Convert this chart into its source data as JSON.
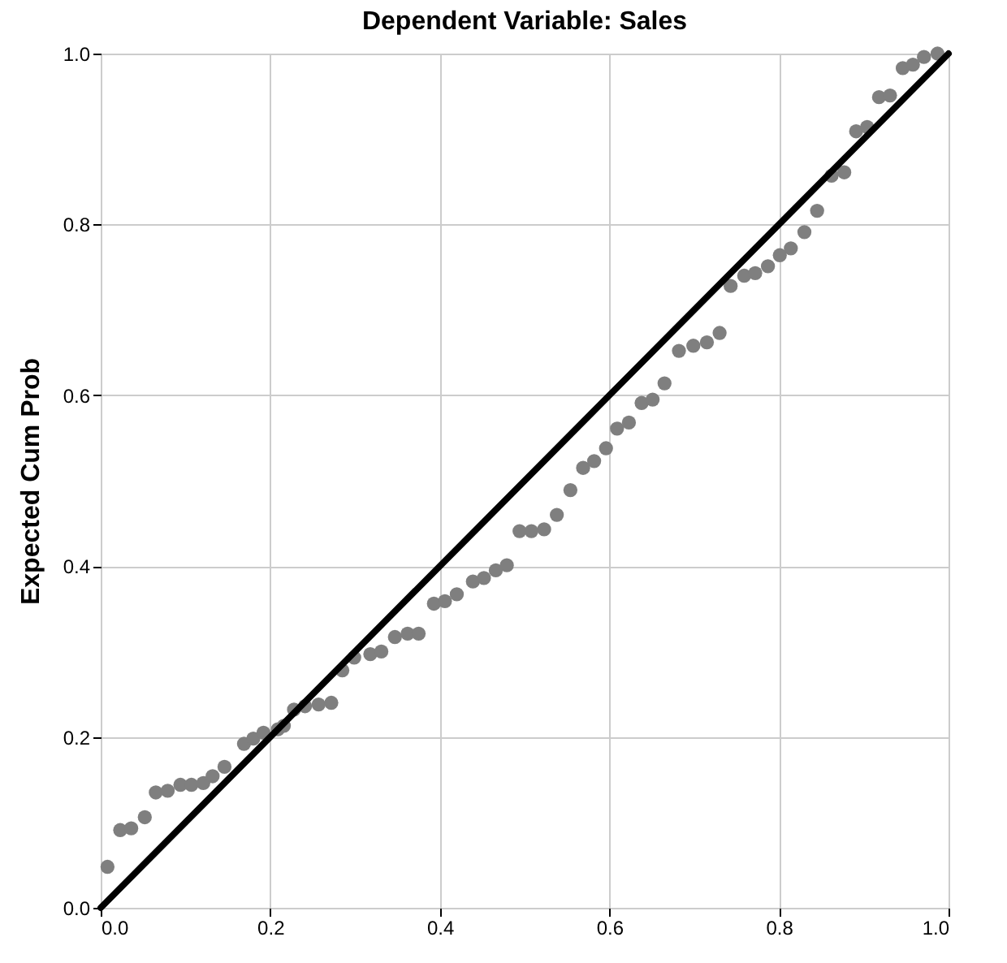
{
  "chart_data": {
    "type": "scatter",
    "title": "Dependent Variable: Sales",
    "ylabel": "Expected Cum Prob",
    "xlim": [
      0,
      1
    ],
    "ylim": [
      0,
      1
    ],
    "xticks": [
      {
        "value": 0,
        "label": "0.0"
      },
      {
        "value": 0.2,
        "label": "0.2"
      },
      {
        "value": 0.4,
        "label": "0.4"
      },
      {
        "value": 0.6,
        "label": "0.6"
      },
      {
        "value": 0.8,
        "label": "0.8"
      },
      {
        "value": 1,
        "label": "1.0"
      }
    ],
    "yticks": [
      {
        "value": 0,
        "label": "0.0"
      },
      {
        "value": 0.2,
        "label": "0.2"
      },
      {
        "value": 0.4,
        "label": "0.4"
      },
      {
        "value": 0.6,
        "label": "0.6"
      },
      {
        "value": 0.8,
        "label": "0.8"
      },
      {
        "value": 1,
        "label": "1.0"
      }
    ],
    "grid": true,
    "series": [
      {
        "type": "scatter",
        "marker": "circle",
        "color": "#7f7f7f",
        "x": [
          0.008,
          0.023,
          0.036,
          0.052,
          0.065,
          0.079,
          0.094,
          0.107,
          0.121,
          0.132,
          0.146,
          0.169,
          0.18,
          0.192,
          0.209,
          0.216,
          0.228,
          0.241,
          0.257,
          0.272,
          0.285,
          0.299,
          0.318,
          0.331,
          0.347,
          0.362,
          0.375,
          0.393,
          0.406,
          0.42,
          0.439,
          0.452,
          0.466,
          0.479,
          0.494,
          0.508,
          0.523,
          0.538,
          0.554,
          0.569,
          0.582,
          0.596,
          0.609,
          0.623,
          0.638,
          0.651,
          0.665,
          0.682,
          0.699,
          0.715,
          0.73,
          0.743,
          0.759,
          0.772,
          0.787,
          0.801,
          0.814,
          0.83,
          0.845,
          0.862,
          0.877,
          0.891,
          0.904,
          0.918,
          0.931,
          0.946,
          0.958,
          0.971,
          0.987
        ],
        "values": [
          0.048,
          0.091,
          0.093,
          0.106,
          0.135,
          0.137,
          0.144,
          0.144,
          0.146,
          0.154,
          0.165,
          0.192,
          0.198,
          0.205,
          0.209,
          0.213,
          0.232,
          0.236,
          0.238,
          0.24,
          0.278,
          0.293,
          0.297,
          0.3,
          0.317,
          0.321,
          0.321,
          0.356,
          0.359,
          0.367,
          0.382,
          0.386,
          0.395,
          0.401,
          0.441,
          0.441,
          0.443,
          0.46,
          0.489,
          0.515,
          0.523,
          0.538,
          0.561,
          0.568,
          0.591,
          0.595,
          0.614,
          0.652,
          0.658,
          0.662,
          0.673,
          0.728,
          0.74,
          0.743,
          0.751,
          0.764,
          0.772,
          0.791,
          0.816,
          0.857,
          0.861,
          0.909,
          0.914,
          0.949,
          0.951,
          0.983,
          0.987,
          0.996,
          1.0
        ]
      },
      {
        "type": "line",
        "marker": "none",
        "color": "#000000",
        "x": [
          0,
          1
        ],
        "values": [
          0,
          1
        ]
      }
    ]
  }
}
